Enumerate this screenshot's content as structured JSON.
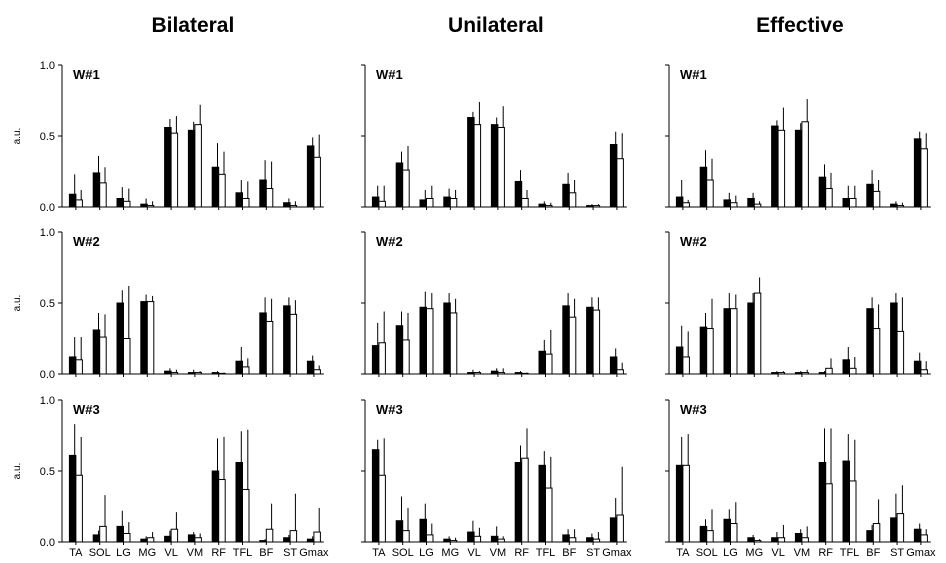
{
  "chart_data": {
    "type": "bar",
    "categories": [
      "TA",
      "SOL",
      "LG",
      "MG",
      "VL",
      "VM",
      "RF",
      "TFL",
      "BF",
      "ST",
      "Gmax"
    ],
    "ylabel": "a.u.",
    "ylim": [
      0,
      1.0
    ],
    "yticks": [
      "0.0",
      "0.5",
      "1.0"
    ],
    "legend": "none",
    "colors": {
      "filled": "#000000",
      "open": "#ffffff",
      "edge": "#000000"
    },
    "panels": [
      {
        "title": "Bilateral",
        "rows": [
          {
            "label": "W#1",
            "filled": {
              "values": [
                0.09,
                0.24,
                0.06,
                0.02,
                0.56,
                0.54,
                0.28,
                0.1,
                0.19,
                0.03,
                0.43
              ],
              "errors": [
                0.14,
                0.12,
                0.08,
                0.04,
                0.06,
                0.06,
                0.17,
                0.09,
                0.14,
                0.03,
                0.06
              ]
            },
            "open": {
              "values": [
                0.05,
                0.17,
                0.04,
                0.01,
                0.52,
                0.58,
                0.23,
                0.06,
                0.13,
                0.01,
                0.35
              ],
              "errors": [
                0.07,
                0.11,
                0.09,
                0.03,
                0.12,
                0.14,
                0.16,
                0.12,
                0.19,
                0.03,
                0.16
              ]
            }
          },
          {
            "label": "W#2",
            "filled": {
              "values": [
                0.12,
                0.31,
                0.5,
                0.51,
                0.02,
                0.01,
                0.01,
                0.09,
                0.43,
                0.48,
                0.09
              ],
              "errors": [
                0.14,
                0.12,
                0.09,
                0.05,
                0.02,
                0.02,
                0.01,
                0.1,
                0.11,
                0.06,
                0.04
              ]
            },
            "open": {
              "values": [
                0.1,
                0.26,
                0.25,
                0.51,
                0.01,
                0.01,
                0.0,
                0.05,
                0.37,
                0.42,
                0.03
              ],
              "errors": [
                0.16,
                0.16,
                0.37,
                0.04,
                0.02,
                0.01,
                0.01,
                0.06,
                0.16,
                0.1,
                0.03
              ]
            }
          },
          {
            "label": "W#3",
            "filled": {
              "values": [
                0.61,
                0.05,
                0.11,
                0.02,
                0.04,
                0.05,
                0.5,
                0.56,
                0.01,
                0.03,
                0.02
              ],
              "errors": [
                0.22,
                0.03,
                0.11,
                0.02,
                0.04,
                0.02,
                0.23,
                0.22,
                0.01,
                0.02,
                0.02
              ]
            },
            "open": {
              "values": [
                0.47,
                0.11,
                0.06,
                0.03,
                0.09,
                0.03,
                0.44,
                0.37,
                0.09,
                0.08,
                0.07
              ],
              "errors": [
                0.27,
                0.22,
                0.08,
                0.04,
                0.12,
                0.03,
                0.3,
                0.42,
                0.18,
                0.26,
                0.17
              ]
            }
          }
        ]
      },
      {
        "title": "Unilateral",
        "rows": [
          {
            "label": "W#1",
            "filled": {
              "values": [
                0.07,
                0.31,
                0.05,
                0.07,
                0.63,
                0.58,
                0.18,
                0.02,
                0.16,
                0.01,
                0.44
              ],
              "errors": [
                0.08,
                0.08,
                0.07,
                0.06,
                0.04,
                0.05,
                0.08,
                0.02,
                0.08,
                0.01,
                0.09
              ]
            },
            "open": {
              "values": [
                0.04,
                0.26,
                0.06,
                0.06,
                0.58,
                0.56,
                0.06,
                0.01,
                0.1,
                0.01,
                0.34
              ],
              "errors": [
                0.11,
                0.17,
                0.09,
                0.06,
                0.16,
                0.15,
                0.06,
                0.02,
                0.09,
                0.01,
                0.18
              ]
            }
          },
          {
            "label": "W#2",
            "filled": {
              "values": [
                0.2,
                0.34,
                0.47,
                0.5,
                0.01,
                0.02,
                0.01,
                0.16,
                0.48,
                0.47,
                0.12
              ],
              "errors": [
                0.16,
                0.1,
                0.11,
                0.07,
                0.02,
                0.02,
                0.01,
                0.08,
                0.09,
                0.07,
                0.06
              ]
            },
            "open": {
              "values": [
                0.22,
                0.24,
                0.46,
                0.43,
                0.01,
                0.01,
                0.0,
                0.14,
                0.4,
                0.45,
                0.03
              ],
              "errors": [
                0.22,
                0.19,
                0.11,
                0.1,
                0.01,
                0.03,
                0.01,
                0.17,
                0.13,
                0.09,
                0.05
              ]
            }
          },
          {
            "label": "W#3",
            "filled": {
              "values": [
                0.65,
                0.15,
                0.16,
                0.02,
                0.07,
                0.04,
                0.56,
                0.54,
                0.05,
                0.03,
                0.17
              ],
              "errors": [
                0.07,
                0.17,
                0.11,
                0.02,
                0.08,
                0.07,
                0.12,
                0.1,
                0.04,
                0.03,
                0.14
              ]
            },
            "open": {
              "values": [
                0.47,
                0.08,
                0.05,
                0.01,
                0.04,
                0.02,
                0.59,
                0.38,
                0.03,
                0.02,
                0.19
              ],
              "errors": [
                0.26,
                0.16,
                0.08,
                0.02,
                0.06,
                0.02,
                0.21,
                0.22,
                0.06,
                0.05,
                0.34
              ]
            }
          }
        ]
      },
      {
        "title": "Effective",
        "rows": [
          {
            "label": "W#1",
            "filled": {
              "values": [
                0.07,
                0.28,
                0.05,
                0.06,
                0.57,
                0.54,
                0.21,
                0.06,
                0.16,
                0.02,
                0.48
              ],
              "errors": [
                0.12,
                0.12,
                0.05,
                0.04,
                0.04,
                0.05,
                0.09,
                0.09,
                0.1,
                0.02,
                0.05
              ]
            },
            "open": {
              "values": [
                0.03,
                0.19,
                0.03,
                0.02,
                0.54,
                0.6,
                0.13,
                0.06,
                0.11,
                0.01,
                0.41
              ],
              "errors": [
                0.02,
                0.15,
                0.05,
                0.02,
                0.16,
                0.16,
                0.11,
                0.09,
                0.08,
                0.02,
                0.11
              ]
            }
          },
          {
            "label": "W#2",
            "filled": {
              "values": [
                0.19,
                0.33,
                0.46,
                0.5,
                0.01,
                0.01,
                0.01,
                0.1,
                0.46,
                0.5,
                0.09
              ],
              "errors": [
                0.15,
                0.1,
                0.11,
                0.07,
                0.01,
                0.01,
                0.01,
                0.09,
                0.08,
                0.07,
                0.06
              ]
            },
            "open": {
              "values": [
                0.12,
                0.32,
                0.46,
                0.57,
                0.01,
                0.01,
                0.04,
                0.04,
                0.32,
                0.3,
                0.03
              ],
              "errors": [
                0.18,
                0.21,
                0.1,
                0.11,
                0.01,
                0.02,
                0.07,
                0.08,
                0.17,
                0.24,
                0.06
              ]
            }
          },
          {
            "label": "W#3",
            "filled": {
              "values": [
                0.54,
                0.11,
                0.16,
                0.03,
                0.03,
                0.06,
                0.56,
                0.57,
                0.08,
                0.17,
                0.09
              ],
              "errors": [
                0.2,
                0.05,
                0.07,
                0.02,
                0.04,
                0.03,
                0.24,
                0.19,
                0.04,
                0.17,
                0.04
              ]
            },
            "open": {
              "values": [
                0.54,
                0.08,
                0.13,
                0.01,
                0.03,
                0.03,
                0.41,
                0.43,
                0.13,
                0.2,
                0.05
              ],
              "errors": [
                0.22,
                0.15,
                0.15,
                0.01,
                0.09,
                0.08,
                0.39,
                0.29,
                0.17,
                0.2,
                0.04
              ]
            }
          }
        ]
      }
    ]
  }
}
